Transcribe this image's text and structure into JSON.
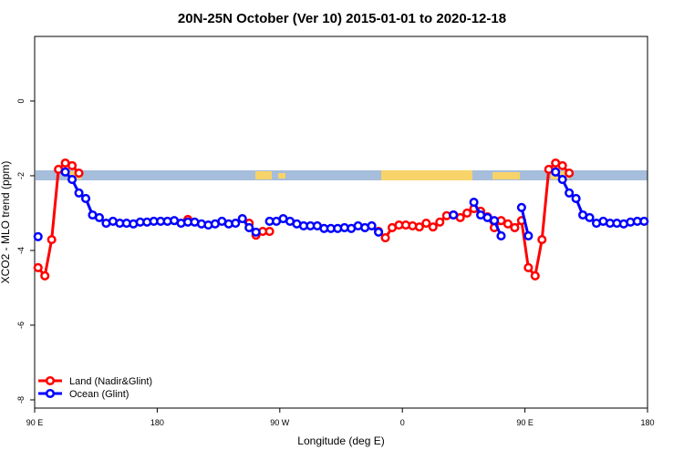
{
  "chart_data": {
    "type": "line",
    "title": "20N-25N October (Ver 10)   2015-01-01 to 2020-12-18",
    "x_label": "Longitude (deg E)",
    "y_label": "XCO2 - MLO trend (ppm)",
    "xlim": [
      90,
      540
    ],
    "ylim": [
      -8.22,
      1.73
    ],
    "xticks": [
      {
        "value": 90,
        "label": "90 E"
      },
      180,
      {
        "value": 270,
        "label": "90 W"
      },
      {
        "value": 360,
        "label": "0"
      },
      {
        "value": 450,
        "label": "90 E"
      },
      {
        "value": 540,
        "label": "180"
      }
    ],
    "yticks": [
      0,
      -2,
      -4,
      -6,
      -8
    ],
    "legend": "bottom-left",
    "x": [
      92.5,
      97.5,
      102.5,
      107.5,
      112.5,
      117.5,
      122.5,
      127.5,
      132.5,
      137.5,
      142.5,
      147.5,
      152.5,
      157.5,
      162.5,
      167.5,
      172.5,
      177.5,
      182.5,
      187.5,
      192.5,
      197.5,
      202.5,
      207.5,
      212.5,
      217.5,
      222.5,
      227.5,
      232.5,
      237.5,
      242.5,
      247.5,
      252.5,
      257.5,
      262.5,
      267.5,
      272.5,
      277.5,
      282.5,
      287.5,
      292.5,
      297.5,
      302.5,
      307.5,
      312.5,
      317.5,
      322.5,
      327.5,
      332.5,
      337.5,
      342.5,
      347.5,
      352.5,
      357.5,
      362.5,
      367.5,
      372.5,
      377.5,
      382.5,
      387.5,
      392.5,
      397.5,
      402.5,
      407.5,
      412.5,
      417.5,
      422.5,
      427.5,
      432.5,
      437.5,
      442.5,
      447.5,
      452.5,
      457.5,
      462.5,
      467.5,
      472.5,
      477.5,
      482.5,
      487.5,
      492.5,
      497.5,
      502.5,
      507.5,
      512.5,
      517.5,
      522.5,
      527.5,
      532.5,
      537.5
    ],
    "series": [
      {
        "name": "Land (Nadir&Glint)",
        "color": "#ff0000",
        "values": [
          -4.46,
          -4.68,
          -3.71,
          -1.83,
          -1.66,
          -1.73,
          -1.93,
          null,
          null,
          null,
          null,
          null,
          null,
          null,
          null,
          null,
          null,
          null,
          null,
          null,
          null,
          null,
          -3.17,
          null,
          null,
          null,
          null,
          null,
          null,
          null,
          null,
          -3.27,
          -3.59,
          -3.49,
          -3.49,
          null,
          null,
          null,
          null,
          null,
          null,
          null,
          null,
          null,
          null,
          null,
          null,
          null,
          null,
          null,
          -3.49,
          -3.66,
          -3.39,
          -3.32,
          -3.32,
          -3.34,
          -3.37,
          -3.27,
          -3.37,
          -3.24,
          -3.07,
          -3.05,
          -3.12,
          -3.0,
          -2.88,
          -2.95,
          -3.1,
          -3.39,
          -3.2,
          -3.29,
          -3.39,
          -3.2,
          -4.46,
          -4.68,
          -3.71,
          -1.83,
          -1.66,
          -1.73,
          -1.93,
          null,
          null,
          null,
          null,
          null,
          null,
          null,
          null,
          null,
          null,
          null
        ]
      },
      {
        "name": "Ocean (Glint)",
        "color": "#0000ff",
        "values": [
          -3.63,
          null,
          null,
          null,
          -1.9,
          -2.1,
          -2.46,
          -2.61,
          -3.05,
          -3.12,
          -3.27,
          -3.22,
          -3.27,
          -3.27,
          -3.29,
          -3.24,
          -3.24,
          -3.22,
          -3.22,
          -3.22,
          -3.2,
          -3.27,
          -3.24,
          -3.24,
          -3.29,
          -3.32,
          -3.29,
          -3.22,
          -3.29,
          -3.27,
          -3.15,
          -3.39,
          -3.51,
          null,
          -3.22,
          -3.22,
          -3.15,
          -3.22,
          -3.29,
          -3.34,
          -3.34,
          -3.34,
          -3.41,
          -3.41,
          -3.41,
          -3.39,
          -3.41,
          -3.34,
          -3.39,
          -3.34,
          -3.51,
          null,
          null,
          null,
          null,
          null,
          null,
          null,
          null,
          null,
          null,
          -3.05,
          null,
          null,
          -2.71,
          -3.05,
          -3.12,
          -3.2,
          -3.61,
          null,
          null,
          -2.85,
          -3.61,
          null,
          null,
          null,
          -1.9,
          -2.1,
          -2.46,
          -2.61,
          -3.05,
          -3.12,
          -3.27,
          -3.22,
          -3.27,
          -3.27,
          -3.29,
          -3.24,
          -3.22,
          -3.22
        ]
      }
    ]
  }
}
